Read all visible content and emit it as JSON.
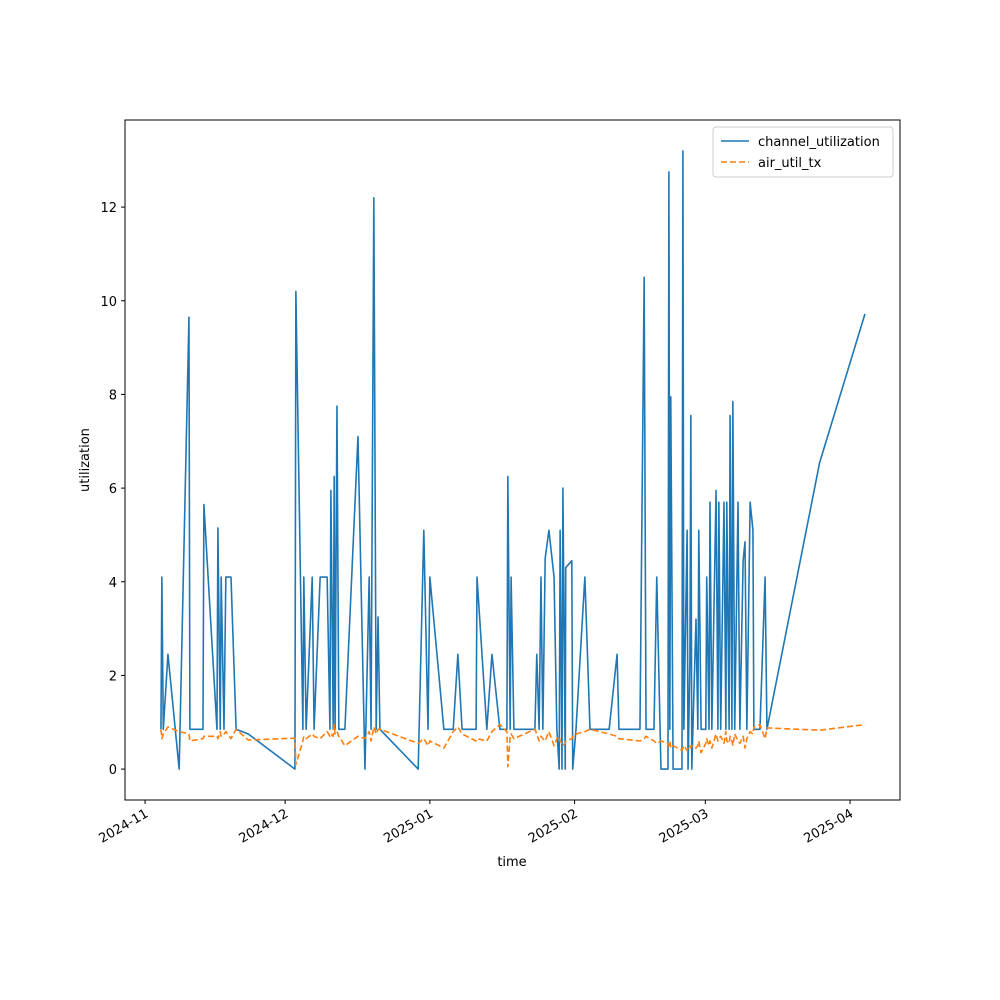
{
  "chart_data": {
    "type": "line",
    "x_label": "time",
    "y_label": "utilization",
    "x": [
      3.4,
      3.6,
      3.9,
      4.9,
      7.3,
      9.4,
      9.6,
      12.4,
      12.6,
      15.4,
      15.6,
      16.1,
      16.3,
      16.9,
      17.3,
      18.4,
      19.5,
      22.1,
      32.1,
      32.3,
      33.8,
      34.0,
      34.5,
      35.8,
      36.2,
      37.5,
      39.0,
      39.6,
      39.8,
      40.3,
      40.5,
      40.7,
      41.1,
      41.5,
      42.8,
      45.6,
      47.1,
      48.0,
      48.4,
      49.0,
      49.5,
      49.9,
      50.3,
      58.5,
      59.7,
      60.6,
      61.0,
      64.0,
      66.0,
      67.0,
      67.9,
      70.9,
      71.1,
      73.2,
      74.3,
      76.0,
      77.5,
      77.7,
      78.2,
      78.4,
      79.0,
      83.5,
      83.9,
      84.4,
      84.8,
      85.2,
      85.7,
      86.5,
      87.6,
      88.2,
      88.7,
      88.9,
      89.3,
      89.5,
      90.0,
      90.1,
      91.4,
      91.6,
      92.3,
      94.2,
      95.3,
      99.4,
      101.1,
      101.5,
      106.0,
      106.9,
      107.3,
      109.0,
      109.6,
      110.5,
      112.0,
      112.2,
      112.4,
      112.6,
      113.1,
      115.0,
      115.2,
      115.4,
      116.1,
      116.3,
      116.7,
      116.9,
      117.1,
      118.0,
      118.4,
      118.6,
      119.1,
      120.1,
      120.3,
      120.8,
      121.0,
      121.4,
      122.3,
      122.7,
      122.9,
      123.3,
      124.0,
      124.4,
      124.6,
      125.1,
      125.3,
      125.7,
      125.9,
      126.3,
      127.0,
      127.4,
      128.1,
      128.5,
      128.9,
      129.6,
      130.2,
      130.4,
      131.7,
      132.8,
      133.2,
      144.5,
      154.2
    ],
    "series": [
      {
        "name": "channel_utilization",
        "color": "#1f77b4",
        "dash": false,
        "values": [
          0.85,
          4.1,
          0.85,
          2.45,
          0,
          9.65,
          0.85,
          0.85,
          5.65,
          0.85,
          5.15,
          0.85,
          4.1,
          0.85,
          4.1,
          4.1,
          0.85,
          0.75,
          0,
          10.2,
          0.85,
          4.1,
          0.85,
          4.1,
          0.85,
          4.1,
          4.1,
          0.85,
          5.95,
          0.85,
          6.25,
          0.85,
          7.75,
          0.85,
          0.85,
          7.1,
          0,
          4.1,
          0.85,
          12.2,
          0.85,
          3.25,
          0.85,
          0,
          5.1,
          0.85,
          4.1,
          0.85,
          0.85,
          2.45,
          0.85,
          0.85,
          4.1,
          0.85,
          2.45,
          0.85,
          0.85,
          6.25,
          0.85,
          4.1,
          0.85,
          0.85,
          2.45,
          0.85,
          4.1,
          0.85,
          4.5,
          5.1,
          4.1,
          0.85,
          0,
          5.1,
          0,
          6.0,
          0,
          4.3,
          4.45,
          0,
          0.85,
          4.1,
          0.85,
          0.85,
          2.45,
          0.85,
          0.85,
          10.5,
          0.85,
          0.85,
          4.1,
          0,
          0,
          12.75,
          0.85,
          7.95,
          0,
          0,
          13.2,
          0.85,
          5.1,
          0,
          2.3,
          7.55,
          0,
          3.2,
          0.85,
          5.1,
          0.85,
          0.85,
          4.1,
          0.85,
          5.7,
          0.85,
          5.95,
          0.85,
          5.7,
          0.85,
          5.7,
          0.85,
          5.7,
          0.85,
          7.55,
          0.85,
          7.85,
          0.85,
          5.7,
          0.85,
          4.45,
          4.85,
          0.85,
          5.7,
          5.1,
          0.85,
          0.85,
          4.1,
          0.85,
          6.55,
          9.72
        ]
      },
      {
        "name": "air_util_tx",
        "color": "#ff7f0e",
        "dash": true,
        "values": [
          0.85,
          0.65,
          0.75,
          0.9,
          0.8,
          0.75,
          0.6,
          0.65,
          0.7,
          0.7,
          0.65,
          0.8,
          0.7,
          0.75,
          0.8,
          0.65,
          0.85,
          0.62,
          0.66,
          0.1,
          0.6,
          0.7,
          0.65,
          0.75,
          0.7,
          0.65,
          0.8,
          0.7,
          0.75,
          0.7,
          0.95,
          0.75,
          0.8,
          0.7,
          0.5,
          0.7,
          0.65,
          0.8,
          0.6,
          0.9,
          0.75,
          0.85,
          0.85,
          0.55,
          0.65,
          0.5,
          0.6,
          0.45,
          0.8,
          0.9,
          0.75,
          0.6,
          0.65,
          0.6,
          0.8,
          0.95,
          0.8,
          0.05,
          0.7,
          0.75,
          0.65,
          0.85,
          0.75,
          0.6,
          0.7,
          0.65,
          0.6,
          0.8,
          0.5,
          0.65,
          0.7,
          0.6,
          0.55,
          0.5,
          0.55,
          0.6,
          0.65,
          0.7,
          0.75,
          0.8,
          0.85,
          0.75,
          0.7,
          0.65,
          0.6,
          0.65,
          0.7,
          0.6,
          0.55,
          0.6,
          0.55,
          0.5,
          0.6,
          0.45,
          0.5,
          0.4,
          0.45,
          0.5,
          0.4,
          0.45,
          0.5,
          0.45,
          0.5,
          0.45,
          0.5,
          0.6,
          0.35,
          0.55,
          0.65,
          0.5,
          0.6,
          0.45,
          0.75,
          0.6,
          0.65,
          0.7,
          0.55,
          0.8,
          0.6,
          0.55,
          0.7,
          0.6,
          0.5,
          0.75,
          0.6,
          0.55,
          0.7,
          0.45,
          0.65,
          0.8,
          0.75,
          0.9,
          0.95,
          0.65,
          0.88,
          0.83,
          0.95
        ]
      }
    ],
    "xlim": [
      -4.3,
      161.7
    ],
    "xticks": [
      {
        "value": 0,
        "label": "2024-11"
      },
      {
        "value": 30,
        "label": "2024-12"
      },
      {
        "value": 61,
        "label": "2025-01"
      },
      {
        "value": 92,
        "label": "2025-02"
      },
      {
        "value": 120,
        "label": "2025-03"
      },
      {
        "value": 151,
        "label": "2025-04"
      }
    ],
    "ylim": [
      -0.66,
      13.86
    ],
    "yticks": [
      0,
      2,
      4,
      6,
      8,
      10,
      12
    ],
    "grid": false,
    "legend": "upper right"
  }
}
